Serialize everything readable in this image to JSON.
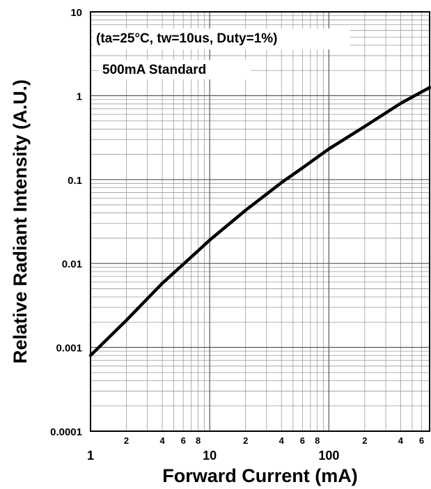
{
  "chart_data": {
    "type": "line",
    "title": "",
    "xlabel": "Forward Current (mA)",
    "ylabel": "Relative Radiant Intensity (A.U.)",
    "x_scale": "log",
    "y_scale": "log",
    "xlim": [
      1,
      700
    ],
    "ylim": [
      0.0001,
      10
    ],
    "grid": true,
    "annotations": [
      "(ta=25°C, tw=10us, Duty=1%)",
      "500mA Standard"
    ],
    "x_major_ticks": [
      {
        "value": 1,
        "label": "1"
      },
      {
        "value": 10,
        "label": "10"
      },
      {
        "value": 100,
        "label": "100"
      }
    ],
    "x_minor_ticks": [
      {
        "value": 2,
        "label": "2"
      },
      {
        "value": 4,
        "label": "4"
      },
      {
        "value": 6,
        "label": "6"
      },
      {
        "value": 8,
        "label": "8"
      },
      {
        "value": 20,
        "label": "2"
      },
      {
        "value": 40,
        "label": "4"
      },
      {
        "value": 60,
        "label": "6"
      },
      {
        "value": 80,
        "label": "8"
      },
      {
        "value": 200,
        "label": "2"
      },
      {
        "value": 400,
        "label": "4"
      },
      {
        "value": 600,
        "label": "6"
      }
    ],
    "y_ticks": [
      {
        "value": 10,
        "label": "10"
      },
      {
        "value": 1,
        "label": "1"
      },
      {
        "value": 0.1,
        "label": "0.1"
      },
      {
        "value": 0.01,
        "label": "0.01"
      },
      {
        "value": 0.001,
        "label": "0.001"
      },
      {
        "value": 0.0001,
        "label": "0.0001"
      }
    ],
    "series": [
      {
        "color": "#000000",
        "points": [
          [
            1,
            0.0008
          ],
          [
            2,
            0.0021
          ],
          [
            4,
            0.0058
          ],
          [
            8,
            0.0142
          ],
          [
            10,
            0.019
          ],
          [
            20,
            0.043
          ],
          [
            40,
            0.092
          ],
          [
            60,
            0.138
          ],
          [
            100,
            0.232
          ],
          [
            200,
            0.43
          ],
          [
            400,
            0.81
          ],
          [
            700,
            1.25
          ]
        ]
      }
    ]
  }
}
